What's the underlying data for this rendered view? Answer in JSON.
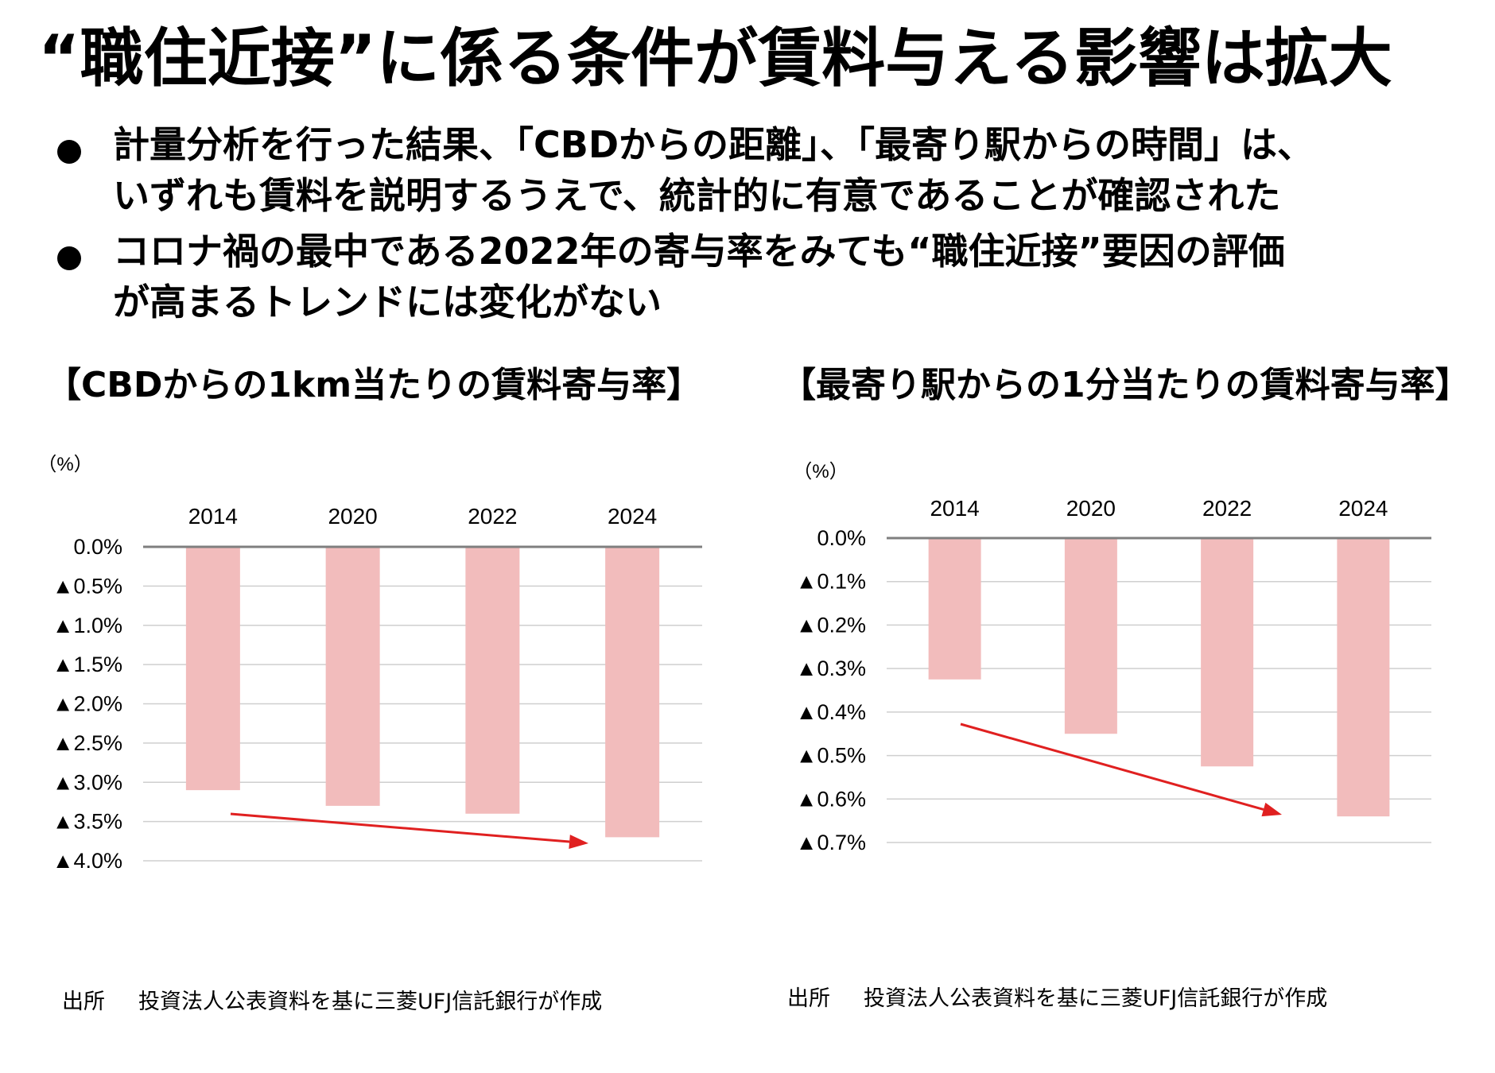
{
  "title": "“職住近接”に係る条件が賃料与える影響は拡大",
  "bullets": [
    {
      "lines": [
        "計量分析を行った結果、「CBDからの距離」、「最寄り駅からの時間」は、",
        "いずれも賃料を説明するうえで、統計的に有意であることが確認された"
      ]
    },
    {
      "lines": [
        "コロナ禍の最中である2022年の寄与率をみても“職住近接”要因の評価",
        "が高まるトレンドには変化がない"
      ]
    }
  ],
  "charts": {
    "left": {
      "heading": "【CBDからの1km当たりの賃料寄与率】",
      "unit": "（%）",
      "source_label": "出所",
      "source_text": "投資法人公表資料を基に三菱UFJ信託銀行が作成"
    },
    "right": {
      "heading": "【最寄り駅からの1分当たりの賃料寄与率】",
      "unit": "（%）",
      "source_label": "出所",
      "source_text": "投資法人公表資料を基に三菱UFJ信託銀行が作成"
    }
  },
  "colors": {
    "bar": "#f2bcbc",
    "arrow": "#e02020",
    "axis": "#7f7f7f",
    "grid": "#cfcfcf"
  },
  "chart_data": [
    {
      "type": "bar",
      "title": "【CBDからの1km当たりの賃料寄与率】",
      "ylabel": "（%）",
      "categories": [
        "2014",
        "2020",
        "2022",
        "2024"
      ],
      "values": [
        -3.1,
        -3.3,
        -3.4,
        -3.7
      ],
      "ylim": [
        -4.0,
        0
      ],
      "yticks": [
        0,
        -0.5,
        -1.0,
        -1.5,
        -2.0,
        -2.5,
        -3.0,
        -3.5,
        -4.0
      ],
      "ytick_labels": [
        "0.0%",
        "▲0.5%",
        "▲1.0%",
        "▲1.5%",
        "▲2.0%",
        "▲2.5%",
        "▲3.0%",
        "▲3.5%",
        "▲4.0%"
      ],
      "trend_arrow": {
        "from": [
          "2014",
          -3.4
        ],
        "to": [
          "2024",
          -3.75
        ]
      }
    },
    {
      "type": "bar",
      "title": "【最寄り駅からの1分当たりの賃料寄与率】",
      "ylabel": "（%）",
      "categories": [
        "2014",
        "2020",
        "2022",
        "2024"
      ],
      "values": [
        -0.325,
        -0.45,
        -0.525,
        -0.64
      ],
      "ylim": [
        -0.7,
        0
      ],
      "yticks": [
        0,
        -0.1,
        -0.2,
        -0.3,
        -0.4,
        -0.5,
        -0.6,
        -0.7
      ],
      "ytick_labels": [
        "0.0%",
        "▲0.1%",
        "▲0.2%",
        "▲0.3%",
        "▲0.4%",
        "▲0.5%",
        "▲0.6%",
        "▲0.7%"
      ],
      "trend_arrow": {
        "from": [
          "2014",
          -0.43
        ],
        "to": [
          "2022+",
          -0.63
        ]
      }
    }
  ]
}
